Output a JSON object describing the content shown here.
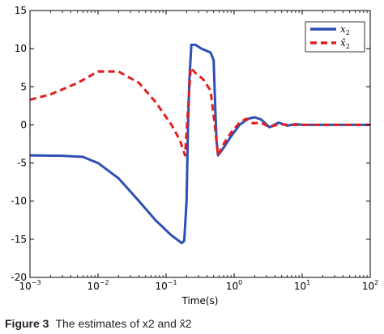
{
  "chart_data": {
    "type": "line",
    "title": "",
    "xlabel": "Time(s)",
    "ylabel": "",
    "xscale": "log",
    "xlim": [
      0.001,
      100
    ],
    "ylim": [
      -20,
      15
    ],
    "grid": false,
    "legend_position": "top-right",
    "x_ticks": [
      {
        "base": "10",
        "exp": "−3",
        "value": 0.001
      },
      {
        "base": "10",
        "exp": "−2",
        "value": 0.01
      },
      {
        "base": "10",
        "exp": "−1",
        "value": 0.1
      },
      {
        "base": "10",
        "exp": "0",
        "value": 1
      },
      {
        "base": "10",
        "exp": "1",
        "value": 10
      },
      {
        "base": "10",
        "exp": "2",
        "value": 100
      }
    ],
    "y_ticks": [
      "-20",
      "-15",
      "-10",
      "-5",
      "0",
      "5",
      "10",
      "15"
    ],
    "series": [
      {
        "name": "x2",
        "legend_main": "x",
        "legend_sub": "2",
        "style": "solid",
        "color": "#2e4fb3",
        "points": [
          [
            0.001,
            -4.0
          ],
          [
            0.003,
            -4.05
          ],
          [
            0.006,
            -4.2
          ],
          [
            0.01,
            -5.0
          ],
          [
            0.02,
            -7.0
          ],
          [
            0.04,
            -10.0
          ],
          [
            0.07,
            -12.5
          ],
          [
            0.12,
            -14.5
          ],
          [
            0.17,
            -15.5
          ],
          [
            0.185,
            -15.2
          ],
          [
            0.2,
            -10.0
          ],
          [
            0.21,
            0.0
          ],
          [
            0.22,
            6.0
          ],
          [
            0.235,
            10.5
          ],
          [
            0.27,
            10.5
          ],
          [
            0.33,
            10.0
          ],
          [
            0.45,
            9.5
          ],
          [
            0.5,
            8.5
          ],
          [
            0.53,
            2.0
          ],
          [
            0.55,
            -2.0
          ],
          [
            0.58,
            -4.0
          ],
          [
            0.7,
            -3.0
          ],
          [
            0.9,
            -1.5
          ],
          [
            1.2,
            0.0
          ],
          [
            1.6,
            0.8
          ],
          [
            2.0,
            1.0
          ],
          [
            2.5,
            0.7
          ],
          [
            3.3,
            -0.3
          ],
          [
            4.5,
            0.3
          ],
          [
            6.0,
            -0.1
          ],
          [
            8.0,
            0.1
          ],
          [
            10.0,
            0.0
          ],
          [
            30.0,
            0.0
          ],
          [
            100.0,
            0.0
          ]
        ]
      },
      {
        "name": "x̂2",
        "legend_main": "x̂",
        "legend_sub": "2",
        "style": "dashed",
        "color": "#e02020",
        "points": [
          [
            0.001,
            3.3
          ],
          [
            0.002,
            4.0
          ],
          [
            0.005,
            5.5
          ],
          [
            0.01,
            7.0
          ],
          [
            0.02,
            7.0
          ],
          [
            0.04,
            5.5
          ],
          [
            0.07,
            3.0
          ],
          [
            0.12,
            0.0
          ],
          [
            0.16,
            -2.0
          ],
          [
            0.19,
            -4.0
          ],
          [
            0.21,
            2.0
          ],
          [
            0.23,
            7.5
          ],
          [
            0.27,
            6.8
          ],
          [
            0.35,
            6.0
          ],
          [
            0.45,
            4.5
          ],
          [
            0.52,
            0.0
          ],
          [
            0.58,
            -4.0
          ],
          [
            0.7,
            -2.5
          ],
          [
            0.9,
            -1.0
          ],
          [
            1.2,
            0.3
          ],
          [
            1.5,
            0.8
          ],
          [
            1.9,
            0.2
          ],
          [
            2.5,
            0.3
          ],
          [
            3.3,
            -0.3
          ],
          [
            4.5,
            0.1
          ],
          [
            6.0,
            0.0
          ],
          [
            10.0,
            0.0
          ],
          [
            100.0,
            0.0
          ]
        ]
      }
    ]
  },
  "caption": {
    "label": "Figure 3",
    "text": "The estimates of x2 and x̂2"
  }
}
